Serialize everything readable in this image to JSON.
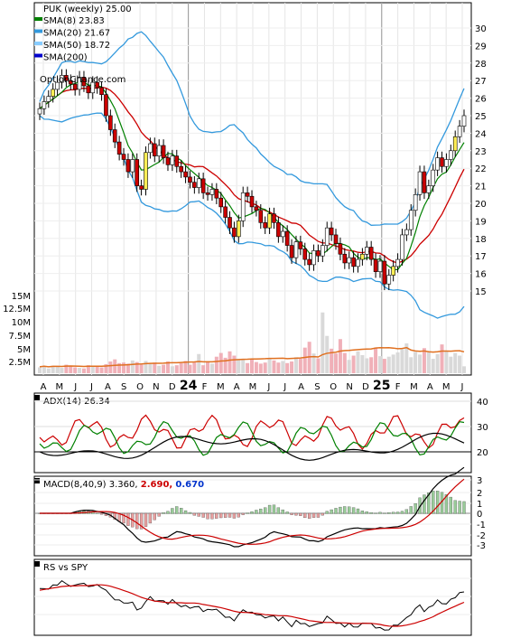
{
  "chart_data": {
    "type": "candlestick",
    "ticker_label": "PUK (weekly) 25.00",
    "watermark": "OptionChance.com",
    "legend": [
      {
        "label": "SMA(8) 23.83",
        "color": "#008000"
      },
      {
        "label": "SMA(20) 21.67",
        "color": "#3399dd"
      },
      {
        "label": "SMA(50) 18.72",
        "color": "#88ccff"
      },
      {
        "label": "SMA(200)",
        "color": "#0000cc"
      }
    ],
    "colors": {
      "sma8": "#008000",
      "sma20": "#3399dd",
      "ema_red": "#cc0000",
      "up": "#ffffff",
      "down": "#cc0000"
    },
    "months": [
      "A",
      "M",
      "J",
      "J",
      "A",
      "S",
      "O",
      "N",
      "D",
      "24",
      "F",
      "M",
      "A",
      "M",
      "J",
      "J",
      "A",
      "S",
      "O",
      "N",
      "D",
      "25",
      "F",
      "M",
      "A",
      "M",
      "J"
    ],
    "price_axis": {
      "min": 15,
      "max": 30,
      "ticks": [
        15,
        16,
        17,
        18,
        19,
        20,
        21,
        22,
        23,
        24,
        25,
        26,
        27,
        28,
        29,
        30
      ]
    },
    "volume_axis": {
      "ticks": [
        "15M",
        "12.5M",
        "10M",
        "7.5M",
        "5M",
        "2.5M"
      ]
    },
    "closes": [
      25.4,
      25.8,
      26.1,
      26.5,
      26.9,
      27.3,
      27.0,
      26.8,
      26.5,
      27.2,
      26.7,
      26.3,
      26.9,
      26.6,
      26.2,
      25.0,
      24.2,
      23.5,
      22.8,
      22.5,
      21.8,
      22.5,
      21.0,
      20.8,
      22.9,
      23.4,
      22.7,
      23.3,
      22.6,
      22.2,
      22.7,
      22.1,
      21.8,
      21.5,
      21.2,
      20.9,
      21.4,
      20.6,
      20.5,
      20.8,
      20.3,
      19.8,
      19.2,
      18.6,
      18.1,
      19.0,
      20.6,
      20.4,
      19.8,
      19.6,
      18.9,
      18.6,
      19.4,
      18.9,
      18.1,
      18.4,
      17.6,
      16.9,
      17.8,
      17.4,
      16.8,
      16.5,
      17.3,
      17.0,
      17.6,
      18.6,
      18.2,
      17.7,
      17.1,
      16.6,
      16.9,
      16.4,
      16.8,
      17.1,
      17.5,
      16.8,
      16.1,
      16.7,
      15.4,
      15.9,
      16.4,
      16.8,
      18.2,
      18.5,
      19.6,
      20.5,
      21.8,
      20.6,
      21.0,
      21.9,
      22.6,
      22.1,
      22.5,
      23.0,
      23.8,
      24.4,
      25.0
    ],
    "volumes": [
      1.1,
      1.3,
      0.9,
      1.4,
      1.2,
      1.0,
      1.6,
      1.3,
      1.1,
      1.0,
      0.9,
      1.5,
      1.2,
      1.3,
      1.1,
      1.7,
      2.2,
      2.6,
      1.9,
      2.0,
      1.8,
      2.4,
      2.1,
      1.6,
      2.3,
      1.8,
      2.0,
      1.4,
      1.6,
      2.2,
      1.3,
      1.5,
      1.9,
      2.3,
      1.6,
      2.0,
      3.6,
      1.5,
      2.1,
      1.8,
      3.1,
      3.8,
      2.9,
      4.1,
      3.3,
      2.5,
      2.7,
      1.9,
      2.6,
      2.1,
      1.8,
      2.0,
      2.8,
      2.4,
      2.0,
      2.3,
      1.9,
      2.2,
      3.0,
      2.7,
      4.8,
      5.9,
      3.7,
      2.8,
      11.4,
      7.0,
      4.6,
      3.7,
      6.4,
      3.8,
      2.5,
      3.3,
      4.1,
      3.4,
      2.8,
      3.0,
      4.8,
      3.2,
      2.7,
      3.1,
      3.5,
      3.9,
      4.5,
      5.6,
      3.0,
      4.0,
      3.5,
      4.7,
      3.9,
      2.7,
      3.6,
      5.4,
      4.2,
      3.1,
      3.8,
      3.3,
      1.3
    ],
    "indicators": [
      {
        "label": "ADX(14) 26.34",
        "ticks": [
          "40",
          "30",
          "20"
        ]
      },
      {
        "label_prefix": "MACD(8,40,9) 3.360,",
        "label_red": "2.690,",
        "label_blue": "0.670",
        "ticks": [
          "3",
          "2",
          "1",
          "0",
          "-1",
          "-2",
          "-3"
        ]
      },
      {
        "label": "RS vs SPY",
        "ticks": []
      }
    ]
  }
}
